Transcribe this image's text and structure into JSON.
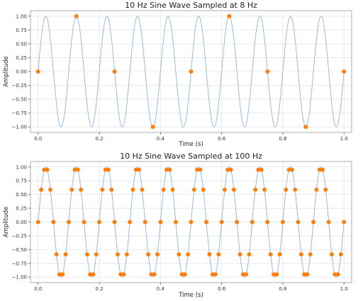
{
  "chart_data": [
    {
      "type": "line",
      "title": "10 Hz Sine Wave Sampled at 8 Hz",
      "xlabel": "Time (s)",
      "ylabel": "Amplitude",
      "xlim": [
        -0.025,
        1.025
      ],
      "ylim": [
        -1.1,
        1.1
      ],
      "xticks": [
        0.0,
        0.2,
        0.4,
        0.6,
        0.8,
        1.0
      ],
      "xtick_labels": [
        "0.0",
        "0.2",
        "0.4",
        "0.6",
        "0.8",
        "1.0"
      ],
      "yticks": [
        1.0,
        0.75,
        0.5,
        0.25,
        0.0,
        -0.25,
        -0.5,
        -0.75,
        -1.0
      ],
      "ytick_labels": [
        "1.00",
        "0.75",
        "0.50",
        "0.25",
        "0.00",
        "−0.25",
        "−0.50",
        "−0.75",
        "−1.00"
      ],
      "grid": true,
      "series": [
        {
          "kind": "line",
          "color": "#8fb3d9",
          "function": "sin",
          "frequency_hz": 10,
          "x_range": [
            0,
            1
          ]
        },
        {
          "kind": "scatter",
          "color": "#ff7f0e",
          "x": [
            0.0,
            0.125,
            0.25,
            0.375,
            0.5,
            0.625,
            0.75,
            0.875,
            1.0
          ],
          "y": [
            0.0,
            1.0,
            0.0,
            -1.0,
            0.0,
            1.0,
            0.0,
            -1.0,
            0.0
          ]
        }
      ]
    },
    {
      "type": "line",
      "title": "10 Hz Sine Wave Sampled at 100 Hz",
      "xlabel": "Time (s)",
      "ylabel": "Amplitude",
      "xlim": [
        -0.025,
        1.025
      ],
      "ylim": [
        -1.1,
        1.1
      ],
      "xticks": [
        0.0,
        0.2,
        0.4,
        0.6,
        0.8,
        1.0
      ],
      "xtick_labels": [
        "0.0",
        "0.2",
        "0.4",
        "0.6",
        "0.8",
        "1.0"
      ],
      "yticks": [
        1.0,
        0.75,
        0.5,
        0.25,
        0.0,
        -0.25,
        -0.5,
        -0.75,
        -1.0
      ],
      "ytick_labels": [
        "1.00",
        "0.75",
        "0.50",
        "0.25",
        "0.00",
        "−0.25",
        "−0.50",
        "−0.75",
        "−1.00"
      ],
      "grid": true,
      "series": [
        {
          "kind": "line",
          "color": "#8fb3d9",
          "function": "sin",
          "frequency_hz": 10,
          "x_range": [
            0,
            1
          ]
        },
        {
          "kind": "scatter",
          "color": "#ff7f0e",
          "function": "sin",
          "frequency_hz": 10,
          "sample_rate_hz": 100,
          "x_range": [
            0,
            1
          ]
        }
      ]
    }
  ]
}
